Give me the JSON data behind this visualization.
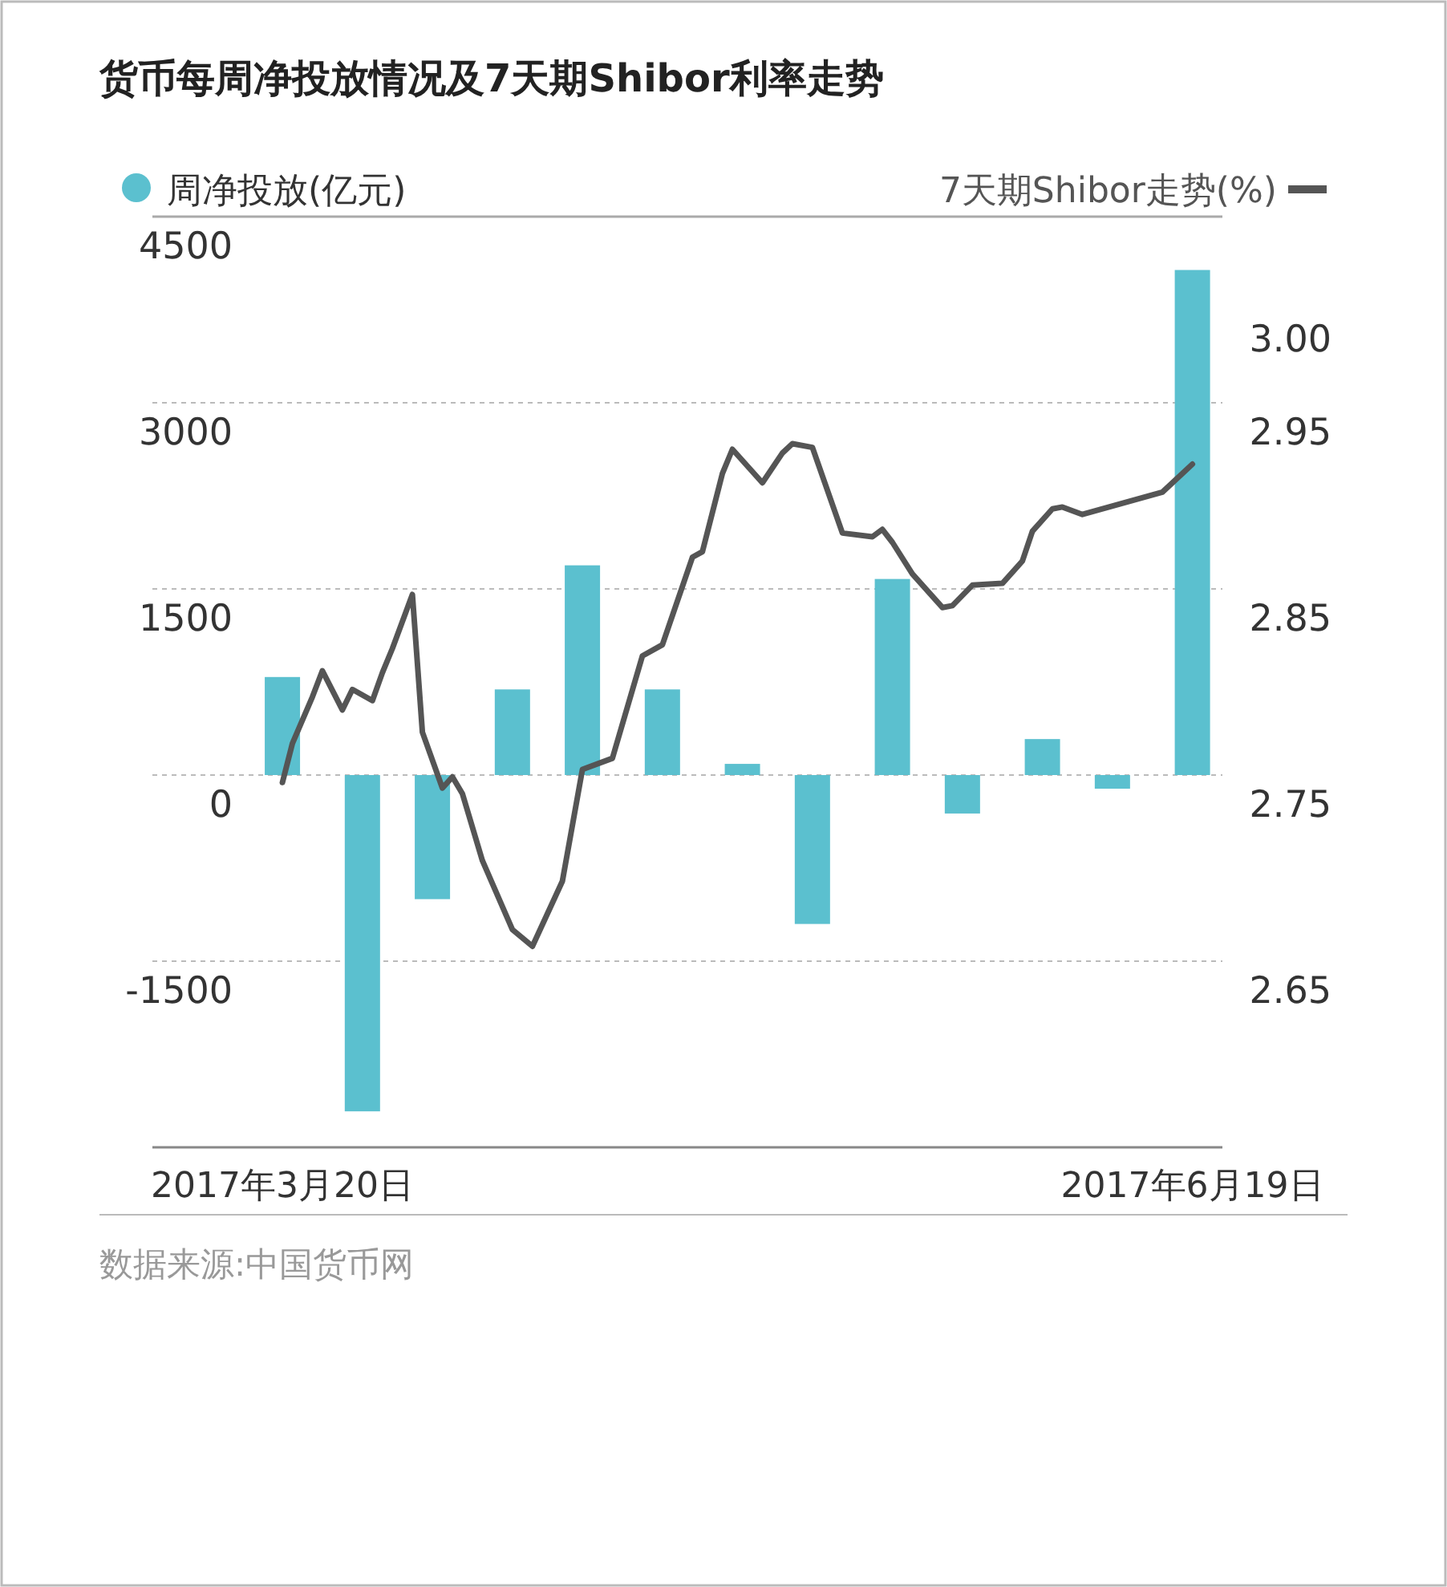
{
  "chart_data": {
    "type": "bar",
    "title": "货币每周净投放情况及7天期Shibor利率走势",
    "x": [
      "2017-03-20",
      "2017-03-28",
      "2017-04-04",
      "2017-04-12",
      "2017-04-19",
      "2017-04-27",
      "2017-05-05",
      "2017-05-12",
      "2017-05-20",
      "2017-05-27",
      "2017-06-04",
      "2017-06-11",
      "2017-06-19"
    ],
    "series": [
      {
        "name": "周净投放(亿元)",
        "color": "#5bc0cf",
        "values": [
          790,
          -2710,
          -1000,
          690,
          1690,
          690,
          90,
          -1200,
          1580,
          -310,
          290,
          -110,
          4070
        ]
      },
      {
        "name": "7天期Shibor走势(%)",
        "type": "line",
        "axis": "y2",
        "color": "#555555",
        "x": [
          "2017-03-20",
          "2017-03-21",
          "2017-03-23",
          "2017-03-24",
          "2017-03-26",
          "2017-03-27",
          "2017-03-29",
          "2017-03-30",
          "2017-03-31",
          "2017-04-02",
          "2017-04-03",
          "2017-04-05",
          "2017-04-06",
          "2017-04-07",
          "2017-04-09",
          "2017-04-12",
          "2017-04-14",
          "2017-04-17",
          "2017-04-19",
          "2017-04-22",
          "2017-04-25",
          "2017-04-27",
          "2017-04-30",
          "2017-05-01",
          "2017-05-03",
          "2017-05-04",
          "2017-05-07",
          "2017-05-09",
          "2017-05-10",
          "2017-05-12",
          "2017-05-15",
          "2017-05-18",
          "2017-05-19",
          "2017-05-20",
          "2017-05-22",
          "2017-05-25",
          "2017-05-26",
          "2017-05-28",
          "2017-05-31",
          "2017-06-02",
          "2017-06-03",
          "2017-06-05",
          "2017-06-06",
          "2017-06-08",
          "2017-06-16",
          "2017-06-19"
        ],
        "values": [
          2.746,
          2.767,
          2.792,
          2.806,
          2.785,
          2.796,
          2.79,
          2.805,
          2.818,
          2.847,
          2.773,
          2.743,
          2.749,
          2.74,
          2.704,
          2.667,
          2.658,
          2.693,
          2.753,
          2.759,
          2.814,
          2.82,
          2.867,
          2.87,
          2.912,
          2.925,
          2.907,
          2.923,
          2.928,
          2.926,
          2.88,
          2.878,
          2.882,
          2.875,
          2.858,
          2.84,
          2.841,
          2.852,
          2.853,
          2.865,
          2.881,
          2.893,
          2.894,
          2.89,
          2.902,
          2.917
        ]
      }
    ],
    "xlim": [
      "2017-03-07",
      "2017-06-22"
    ],
    "xticks": [
      {
        "value": "2017-03-20",
        "label": "2017年3月20日"
      },
      {
        "value": "2017-06-19",
        "label": "2017年6月19日"
      }
    ],
    "ylim": [
      -3000,
      4500
    ],
    "yticks": [
      -1500,
      0,
      1500,
      3000,
      4500
    ],
    "y2lim": [
      2.55,
      3.05
    ],
    "y2ticks": [
      2.65,
      2.75,
      2.85,
      2.95,
      {
        "value": 3.0,
        "label": "3.00"
      }
    ],
    "grid": "y",
    "legend": "top",
    "annotations": [
      "数据来源:中国货币网"
    ]
  }
}
